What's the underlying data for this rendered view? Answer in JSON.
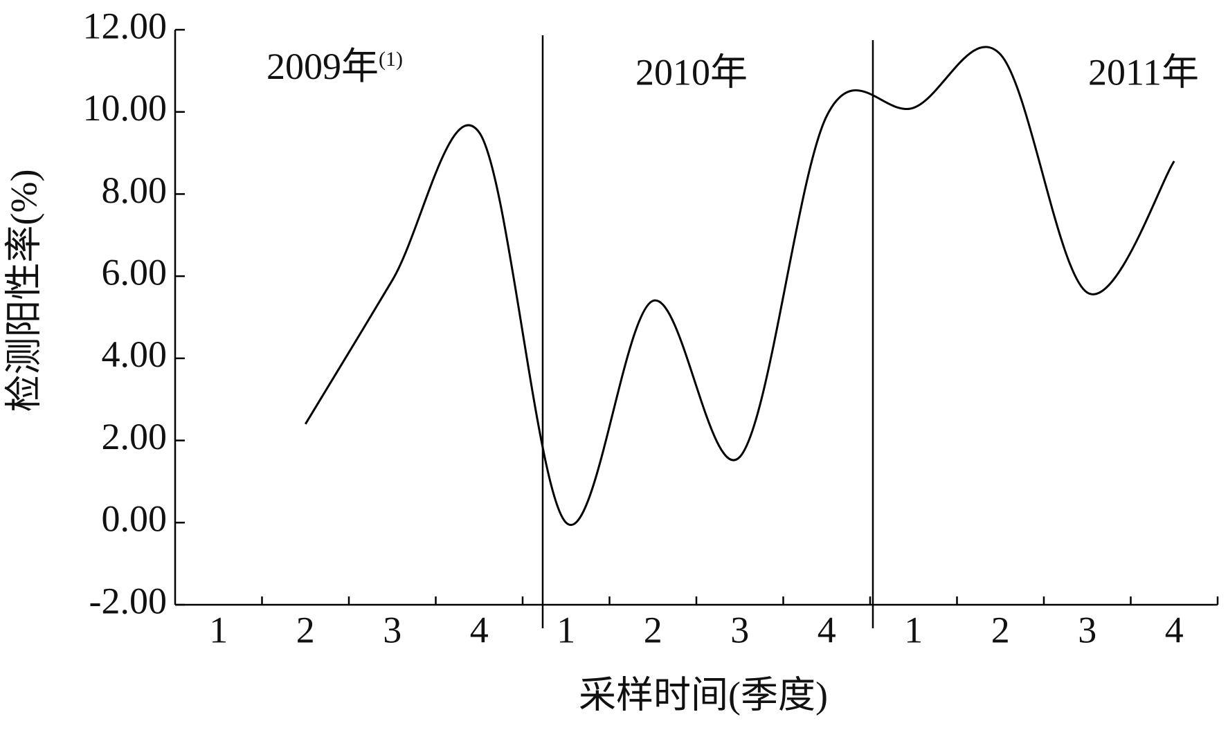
{
  "chart_data": {
    "type": "line",
    "x_label": "采样时间(季度)",
    "y_label": "检测阳性率(%)",
    "categories": [
      "1",
      "2",
      "3",
      "4",
      "1",
      "2",
      "3",
      "4",
      "1",
      "2",
      "3",
      "4"
    ],
    "values": [
      null,
      2.4,
      5.9,
      9.5,
      0.0,
      5.4,
      1.6,
      9.9,
      10.1,
      11.4,
      5.6,
      8.8
    ],
    "color": "#000000",
    "ylim": [
      -2,
      12
    ],
    "yticks": [
      {
        "value": -2,
        "label": "-2.00"
      },
      {
        "value": 0,
        "label": "0.00"
      },
      {
        "value": 2,
        "label": "2.00"
      },
      {
        "value": 4,
        "label": "4.00"
      },
      {
        "value": 6,
        "label": "6.00"
      },
      {
        "value": 8,
        "label": "8.00"
      },
      {
        "value": 10,
        "label": "10.00"
      },
      {
        "value": 12,
        "label": "12.00"
      }
    ],
    "annotations": [
      {
        "text": "2009年",
        "note": "(1)"
      },
      {
        "text": "2010年"
      },
      {
        "text": "2011年"
      }
    ]
  }
}
